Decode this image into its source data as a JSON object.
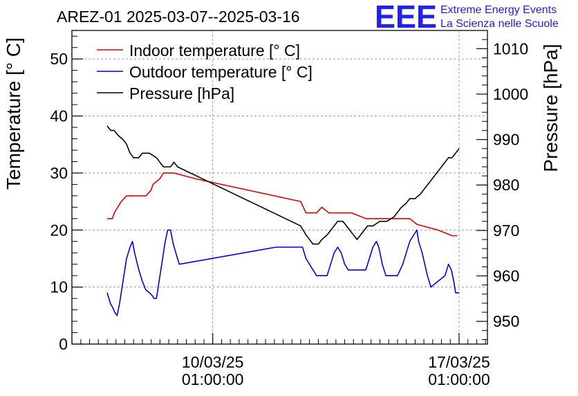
{
  "chart_data": {
    "type": "line",
    "title": "AREZ-01 2025-03-07--2025-03-16",
    "ylabel": "Temperature [° C]",
    "y2label": "Pressure [hPa]",
    "ylim": [
      0,
      55
    ],
    "y2lim": [
      945,
      1014
    ],
    "y_ticks": [
      0,
      10,
      20,
      30,
      40,
      50
    ],
    "y2_ticks": [
      950,
      960,
      970,
      980,
      990,
      1000,
      1010
    ],
    "x_ticks": [
      {
        "x": 3,
        "line1": "10/03/25",
        "line2": "01:00:00"
      },
      {
        "x": 10,
        "line1": "17/03/25",
        "line2": "01:00:00"
      }
    ],
    "grid": true,
    "legend_position": "top-left",
    "series": [
      {
        "name": "Indoor temperature [° C]",
        "color": "#e00000",
        "axis": "left",
        "points": [
          [
            0,
            22
          ],
          [
            0.15,
            22
          ],
          [
            0.2,
            23
          ],
          [
            0.3,
            24
          ],
          [
            0.4,
            25
          ],
          [
            0.55,
            26
          ],
          [
            0.8,
            26
          ],
          [
            1.1,
            26
          ],
          [
            1.25,
            27
          ],
          [
            1.3,
            28
          ],
          [
            1.5,
            29
          ],
          [
            1.6,
            30
          ],
          [
            1.9,
            30
          ],
          [
            2.5,
            29
          ],
          [
            5.5,
            25
          ],
          [
            5.65,
            23
          ],
          [
            5.95,
            23
          ],
          [
            6.1,
            24
          ],
          [
            6.3,
            23
          ],
          [
            6.95,
            23
          ],
          [
            7.35,
            22
          ],
          [
            8.6,
            22
          ],
          [
            8.8,
            21
          ],
          [
            9.4,
            20
          ],
          [
            9.8,
            19
          ],
          [
            9.95,
            19
          ]
        ]
      },
      {
        "name": "Outdoor temperature [° C]",
        "color": "#0000e0",
        "axis": "left",
        "points": [
          [
            0,
            9
          ],
          [
            0.1,
            7
          ],
          [
            0.15,
            6.5
          ],
          [
            0.22,
            5.5
          ],
          [
            0.28,
            5
          ],
          [
            0.35,
            7
          ],
          [
            0.45,
            11
          ],
          [
            0.55,
            15
          ],
          [
            0.65,
            17
          ],
          [
            0.72,
            18
          ],
          [
            0.78,
            16
          ],
          [
            0.9,
            13
          ],
          [
            1.0,
            11
          ],
          [
            1.1,
            9.5
          ],
          [
            1.2,
            9
          ],
          [
            1.28,
            8.5
          ],
          [
            1.33,
            8
          ],
          [
            1.4,
            8
          ],
          [
            1.45,
            10
          ],
          [
            1.55,
            14
          ],
          [
            1.65,
            18
          ],
          [
            1.72,
            20
          ],
          [
            1.8,
            20
          ],
          [
            1.88,
            17.5
          ],
          [
            1.95,
            16
          ],
          [
            2.05,
            14
          ],
          [
            4.8,
            17
          ],
          [
            5.55,
            17
          ],
          [
            5.65,
            15
          ],
          [
            5.8,
            13.5
          ],
          [
            5.95,
            12
          ],
          [
            6.25,
            12
          ],
          [
            6.35,
            14
          ],
          [
            6.45,
            16
          ],
          [
            6.55,
            17
          ],
          [
            6.65,
            16
          ],
          [
            6.75,
            14
          ],
          [
            6.85,
            13
          ],
          [
            7.35,
            13
          ],
          [
            7.45,
            15
          ],
          [
            7.55,
            17
          ],
          [
            7.65,
            18
          ],
          [
            7.72,
            17
          ],
          [
            7.82,
            14
          ],
          [
            7.92,
            12
          ],
          [
            8.25,
            12
          ],
          [
            8.4,
            14
          ],
          [
            8.5,
            16
          ],
          [
            8.6,
            18
          ],
          [
            8.7,
            19
          ],
          [
            8.8,
            20
          ],
          [
            8.85,
            18
          ],
          [
            8.95,
            16
          ],
          [
            9.1,
            12
          ],
          [
            9.2,
            10
          ],
          [
            9.6,
            12
          ],
          [
            9.7,
            14
          ],
          [
            9.78,
            13
          ],
          [
            9.85,
            11
          ],
          [
            9.9,
            9
          ],
          [
            10.0,
            9
          ]
        ]
      },
      {
        "name": "Pressure [hPa]",
        "color": "#000000",
        "axis": "right",
        "points": [
          [
            0,
            993
          ],
          [
            0.1,
            992
          ],
          [
            0.2,
            992
          ],
          [
            0.3,
            991
          ],
          [
            0.45,
            990
          ],
          [
            0.55,
            989
          ],
          [
            0.6,
            988
          ],
          [
            0.65,
            987
          ],
          [
            0.75,
            986
          ],
          [
            0.9,
            986
          ],
          [
            1.0,
            987
          ],
          [
            1.2,
            987
          ],
          [
            1.4,
            986
          ],
          [
            1.5,
            985
          ],
          [
            1.6,
            984
          ],
          [
            1.8,
            984
          ],
          [
            1.9,
            985
          ],
          [
            2.0,
            984
          ],
          [
            5.5,
            971
          ],
          [
            5.65,
            969
          ],
          [
            5.75,
            968
          ],
          [
            5.85,
            967
          ],
          [
            6.0,
            967
          ],
          [
            6.1,
            968
          ],
          [
            6.25,
            969
          ],
          [
            6.35,
            970
          ],
          [
            6.45,
            971
          ],
          [
            6.55,
            972
          ],
          [
            6.7,
            972
          ],
          [
            6.8,
            971
          ],
          [
            6.9,
            970
          ],
          [
            7.0,
            969
          ],
          [
            7.1,
            968
          ],
          [
            7.2,
            969
          ],
          [
            7.3,
            970
          ],
          [
            7.4,
            971
          ],
          [
            7.55,
            971
          ],
          [
            7.75,
            972
          ],
          [
            7.95,
            972
          ],
          [
            8.15,
            973
          ],
          [
            8.25,
            974
          ],
          [
            8.35,
            975
          ],
          [
            8.5,
            976
          ],
          [
            8.6,
            977
          ],
          [
            8.75,
            977
          ],
          [
            8.9,
            978
          ],
          [
            9.0,
            979
          ],
          [
            9.2,
            981
          ],
          [
            9.4,
            983
          ],
          [
            9.6,
            985
          ],
          [
            9.7,
            986
          ],
          [
            9.8,
            986
          ],
          [
            9.9,
            987
          ],
          [
            10.0,
            988
          ]
        ]
      }
    ]
  },
  "logo": {
    "mark": "EEE",
    "line1": "Extreme Energy Events",
    "line2": "La Scienza nelle Scuole"
  }
}
